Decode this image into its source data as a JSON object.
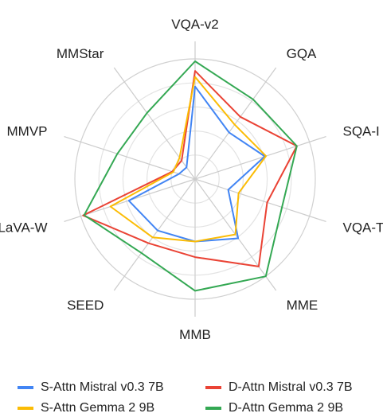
{
  "chart_data": {
    "type": "radar",
    "axes": [
      "VQA-v2",
      "GQA",
      "SQA-I",
      "VQA-T",
      "MME",
      "MMB",
      "SEED",
      "LLaVA-W",
      "MMVP",
      "MMStar"
    ],
    "rlim": [
      0,
      1
    ],
    "grid": true,
    "legend_position": "bottom",
    "series": [
      {
        "name": "S-Attn Mistral v0.3 7B",
        "color": "#4285F4",
        "values": [
          0.77,
          0.48,
          0.61,
          0.29,
          0.61,
          0.52,
          0.53,
          0.58,
          0.14,
          0.12
        ]
      },
      {
        "name": "D-Attn Mistral v0.3 7B",
        "color": "#EA4335",
        "values": [
          0.9,
          0.64,
          0.89,
          0.63,
          0.9,
          0.65,
          0.66,
          0.98,
          0.2,
          0.19
        ]
      },
      {
        "name": "S-Attn Gemma 2 9B",
        "color": "#FBBC05",
        "values": [
          0.85,
          0.56,
          0.62,
          0.38,
          0.57,
          0.52,
          0.6,
          0.74,
          0.19,
          0.22
        ]
      },
      {
        "name": "D-Attn Gemma 2 9B",
        "color": "#34A853",
        "values": [
          0.98,
          0.82,
          0.89,
          0.76,
          1.0,
          0.93,
          0.76,
          0.97,
          0.68,
          0.68
        ]
      }
    ]
  }
}
